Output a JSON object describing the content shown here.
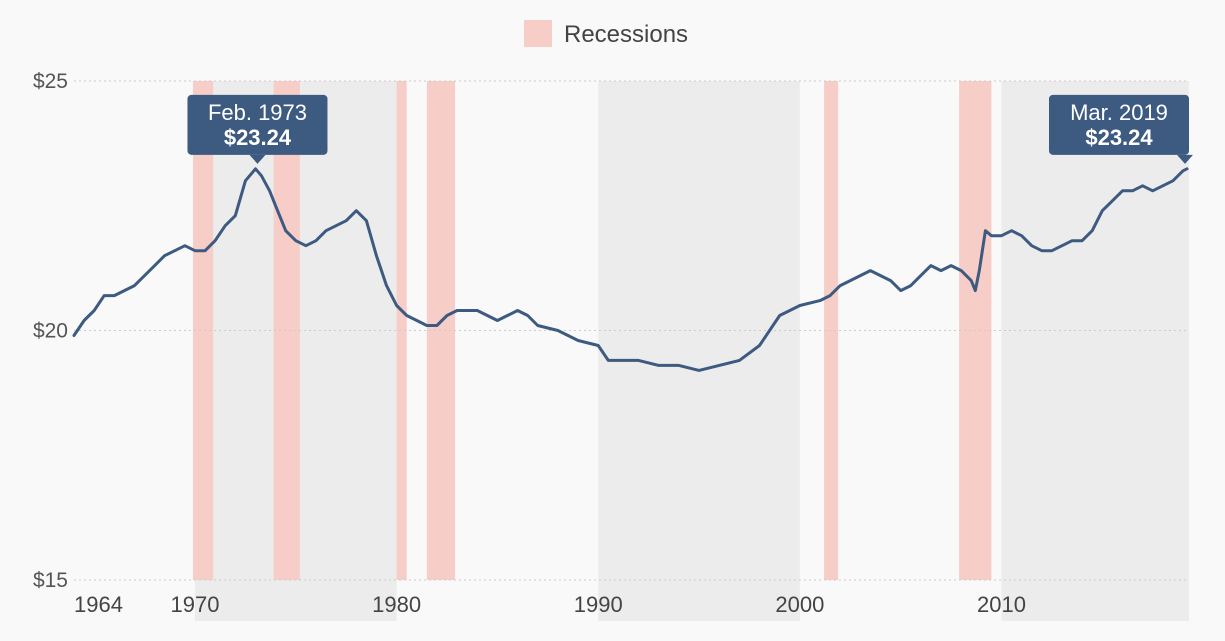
{
  "chart_data": {
    "type": "line",
    "legend": {
      "label": "Recessions",
      "position": "top-center"
    },
    "colors": {
      "line": "#3d5a80",
      "recession": "#f7cdc8",
      "decade_band": "#ececec",
      "callout": "#3d5a80",
      "grid": "#cccccc",
      "background": "#f9f9f9"
    },
    "ylim": [
      15,
      25
    ],
    "xlim": [
      1964,
      2019.3
    ],
    "y_ticks": [
      {
        "value": 25,
        "label": "$25"
      },
      {
        "value": 20,
        "label": "$20"
      },
      {
        "value": 15,
        "label": "$15"
      }
    ],
    "x_ticks": [
      {
        "value": 1964,
        "label": "1964"
      },
      {
        "value": 1970,
        "label": "1970"
      },
      {
        "value": 1980,
        "label": "1980"
      },
      {
        "value": 1990,
        "label": "1990"
      },
      {
        "value": 2000,
        "label": "2000"
      },
      {
        "value": 2010,
        "label": "2010"
      }
    ],
    "decade_bands": [
      [
        1970,
        1980
      ],
      [
        1990,
        2000
      ],
      [
        2010,
        2019.3
      ]
    ],
    "recessions": [
      [
        1969.9,
        1970.9
      ],
      [
        1973.9,
        1975.2
      ],
      [
        1980.0,
        1980.5
      ],
      [
        1981.5,
        1982.9
      ],
      [
        2001.2,
        2001.9
      ],
      [
        2007.9,
        2009.5
      ]
    ],
    "series": [
      {
        "values": [
          [
            1964.0,
            19.9
          ],
          [
            1964.5,
            20.2
          ],
          [
            1965.0,
            20.4
          ],
          [
            1965.5,
            20.7
          ],
          [
            1966.0,
            20.7
          ],
          [
            1966.5,
            20.8
          ],
          [
            1967.0,
            20.9
          ],
          [
            1967.5,
            21.1
          ],
          [
            1968.0,
            21.3
          ],
          [
            1968.5,
            21.5
          ],
          [
            1969.0,
            21.6
          ],
          [
            1969.5,
            21.7
          ],
          [
            1970.0,
            21.6
          ],
          [
            1970.5,
            21.6
          ],
          [
            1971.0,
            21.8
          ],
          [
            1971.5,
            22.1
          ],
          [
            1972.0,
            22.3
          ],
          [
            1972.5,
            23.0
          ],
          [
            1973.0,
            23.24
          ],
          [
            1973.3,
            23.1
          ],
          [
            1973.7,
            22.8
          ],
          [
            1974.0,
            22.5
          ],
          [
            1974.5,
            22.0
          ],
          [
            1975.0,
            21.8
          ],
          [
            1975.5,
            21.7
          ],
          [
            1976.0,
            21.8
          ],
          [
            1976.5,
            22.0
          ],
          [
            1977.0,
            22.1
          ],
          [
            1977.5,
            22.2
          ],
          [
            1978.0,
            22.4
          ],
          [
            1978.5,
            22.2
          ],
          [
            1979.0,
            21.5
          ],
          [
            1979.5,
            20.9
          ],
          [
            1980.0,
            20.5
          ],
          [
            1980.5,
            20.3
          ],
          [
            1981.0,
            20.2
          ],
          [
            1981.5,
            20.1
          ],
          [
            1982.0,
            20.1
          ],
          [
            1982.5,
            20.3
          ],
          [
            1983.0,
            20.4
          ],
          [
            1984.0,
            20.4
          ],
          [
            1985.0,
            20.2
          ],
          [
            1985.5,
            20.3
          ],
          [
            1986.0,
            20.4
          ],
          [
            1986.5,
            20.3
          ],
          [
            1987.0,
            20.1
          ],
          [
            1988.0,
            20.0
          ],
          [
            1989.0,
            19.8
          ],
          [
            1990.0,
            19.7
          ],
          [
            1990.5,
            19.4
          ],
          [
            1991.0,
            19.4
          ],
          [
            1992.0,
            19.4
          ],
          [
            1993.0,
            19.3
          ],
          [
            1994.0,
            19.3
          ],
          [
            1995.0,
            19.2
          ],
          [
            1996.0,
            19.3
          ],
          [
            1997.0,
            19.4
          ],
          [
            1998.0,
            19.7
          ],
          [
            1998.5,
            20.0
          ],
          [
            1999.0,
            20.3
          ],
          [
            2000.0,
            20.5
          ],
          [
            2001.0,
            20.6
          ],
          [
            2001.5,
            20.7
          ],
          [
            2002.0,
            20.9
          ],
          [
            2002.5,
            21.0
          ],
          [
            2003.0,
            21.1
          ],
          [
            2003.5,
            21.2
          ],
          [
            2004.0,
            21.1
          ],
          [
            2004.5,
            21.0
          ],
          [
            2005.0,
            20.8
          ],
          [
            2005.5,
            20.9
          ],
          [
            2006.0,
            21.1
          ],
          [
            2006.5,
            21.3
          ],
          [
            2007.0,
            21.2
          ],
          [
            2007.5,
            21.3
          ],
          [
            2008.0,
            21.2
          ],
          [
            2008.5,
            21.0
          ],
          [
            2008.7,
            20.8
          ],
          [
            2008.9,
            21.2
          ],
          [
            2009.2,
            22.0
          ],
          [
            2009.5,
            21.9
          ],
          [
            2010.0,
            21.9
          ],
          [
            2010.5,
            22.0
          ],
          [
            2011.0,
            21.9
          ],
          [
            2011.5,
            21.7
          ],
          [
            2012.0,
            21.6
          ],
          [
            2012.5,
            21.6
          ],
          [
            2013.0,
            21.7
          ],
          [
            2013.5,
            21.8
          ],
          [
            2014.0,
            21.8
          ],
          [
            2014.5,
            22.0
          ],
          [
            2015.0,
            22.4
          ],
          [
            2015.5,
            22.6
          ],
          [
            2016.0,
            22.8
          ],
          [
            2016.5,
            22.8
          ],
          [
            2017.0,
            22.9
          ],
          [
            2017.5,
            22.8
          ],
          [
            2018.0,
            22.9
          ],
          [
            2018.5,
            23.0
          ],
          [
            2019.0,
            23.2
          ],
          [
            2019.2,
            23.24
          ]
        ]
      }
    ],
    "annotations": [
      {
        "date": "Feb. 1973",
        "value": "$23.24",
        "x": 1973.1,
        "y": 23.24
      },
      {
        "date": "Mar. 2019",
        "value": "$23.24",
        "x": 2019.2,
        "y": 23.24
      }
    ]
  }
}
